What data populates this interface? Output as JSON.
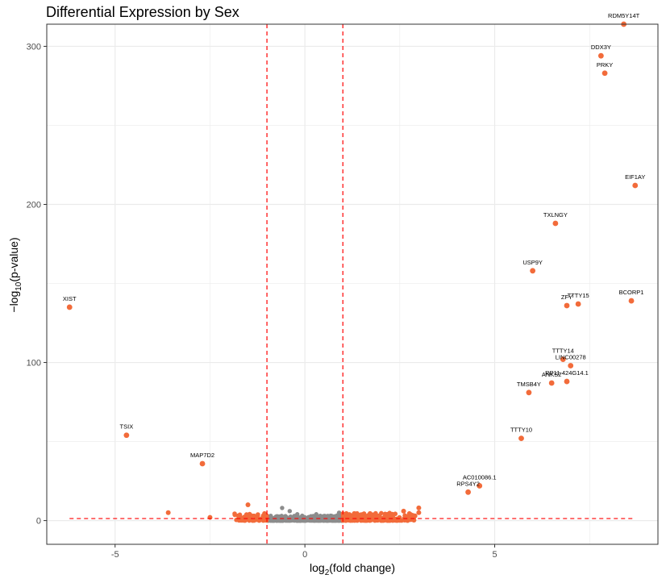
{
  "chart_data": {
    "type": "scatter",
    "title": "Differential Expression by Sex",
    "xlabel": "log2(fold change)",
    "ylabel": "−log10(p-value)",
    "xlim": [
      -6.8,
      9.3
    ],
    "ylim": [
      -15,
      314
    ],
    "x_ticks": [
      -5,
      0,
      5
    ],
    "y_ticks": [
      0,
      100,
      200,
      300
    ],
    "grid": true,
    "thresholds": {
      "fold_change": [
        -1,
        1
      ],
      "pvalue_line": 1.3
    },
    "colors": {
      "significant": "#f26b3a",
      "not_significant": "#8c8c8c",
      "threshold_line": "#ff0000",
      "grid": "#ebebeb",
      "border": "#333333"
    },
    "labeled_points": [
      {
        "label": "XIST",
        "x": -6.2,
        "y": 135
      },
      {
        "label": "TSIX",
        "x": -4.7,
        "y": 54
      },
      {
        "label": "MAP7D2",
        "x": -2.7,
        "y": 36
      },
      {
        "label": "RPS4Y2",
        "x": 4.3,
        "y": 18
      },
      {
        "label": "AC010086.1",
        "x": 4.6,
        "y": 22
      },
      {
        "label": "TTTY10",
        "x": 5.7,
        "y": 52
      },
      {
        "label": "TMSB4Y",
        "x": 5.9,
        "y": 81
      },
      {
        "label": "ANKS2",
        "x": 6.5,
        "y": 87
      },
      {
        "label": "RP11-424G14.1",
        "x": 6.9,
        "y": 88
      },
      {
        "label": "TTTY14",
        "x": 6.8,
        "y": 102
      },
      {
        "label": "LINC00278",
        "x": 7.0,
        "y": 98
      },
      {
        "label": "ZFY",
        "x": 6.9,
        "y": 136
      },
      {
        "label": "TTTY15",
        "x": 7.2,
        "y": 137
      },
      {
        "label": "USP9Y",
        "x": 6.0,
        "y": 158
      },
      {
        "label": "TXLNGY",
        "x": 6.6,
        "y": 188
      },
      {
        "label": "BCORP1",
        "x": 8.6,
        "y": 139
      },
      {
        "label": "EIF1AY",
        "x": 8.7,
        "y": 212
      },
      {
        "label": "PRKY",
        "x": 7.9,
        "y": 283
      },
      {
        "label": "DDX3Y",
        "x": 7.8,
        "y": 294
      },
      {
        "label": "RDM5Y14T",
        "x": 8.4,
        "y": 314
      }
    ],
    "other_significant_points": [
      {
        "x": -3.6,
        "y": 5
      },
      {
        "x": -2.5,
        "y": 2
      },
      {
        "x": -1.5,
        "y": 10
      },
      {
        "x": -1.7,
        "y": 2
      },
      {
        "x": -1.4,
        "y": 3
      },
      {
        "x": 3.0,
        "y": 8
      },
      {
        "x": 3.0,
        "y": 5
      },
      {
        "x": 2.6,
        "y": 6
      },
      {
        "x": 2.9,
        "y": 3
      },
      {
        "x": 2.3,
        "y": 4
      }
    ]
  }
}
